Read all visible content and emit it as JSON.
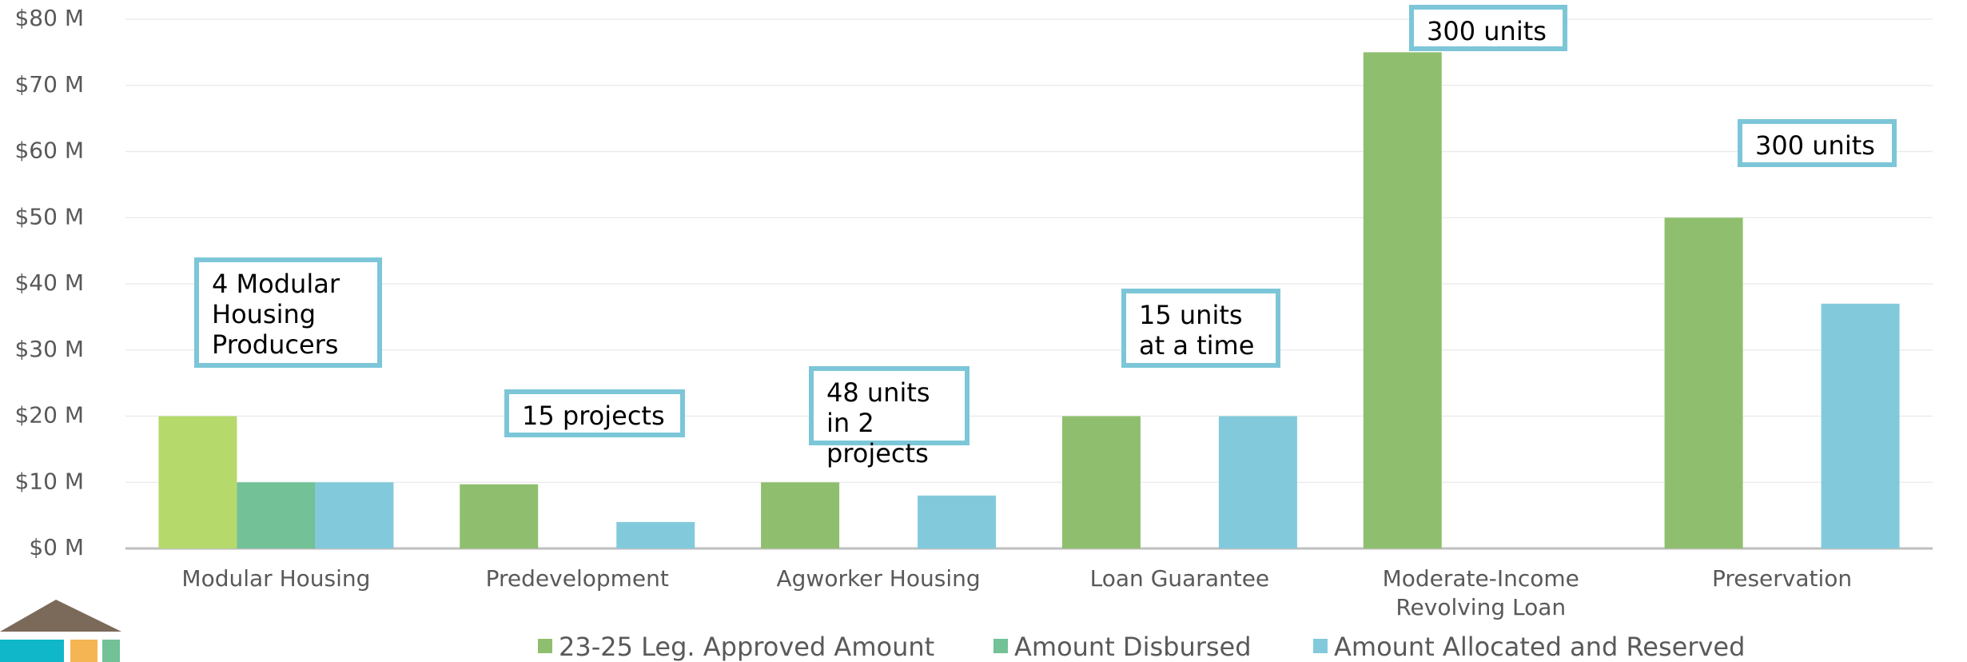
{
  "chart_data": {
    "type": "bar",
    "categories": [
      "Modular Housing",
      "Predevelopment",
      "Agworker Housing",
      "Loan Guarantee",
      "Moderate-Income Revolving Loan",
      "Preservation"
    ],
    "series": [
      {
        "name": "23-25 Leg. Approved Amount",
        "color": "#8fbf6e",
        "colors": [
          "#b5d96b",
          "#8fbf6e",
          "#8fbf6e",
          "#8fbf6e",
          "#8fbf6e",
          "#8fbf6e"
        ],
        "values": [
          20,
          9.7,
          10,
          20,
          75,
          50
        ]
      },
      {
        "name": "Amount Disbursed",
        "color": "#72c197",
        "values": [
          10,
          null,
          null,
          null,
          null,
          null
        ]
      },
      {
        "name": "Amount Allocated and Reserved",
        "color": "#82cadb",
        "values": [
          10,
          4,
          8,
          20,
          null,
          37
        ]
      }
    ],
    "ylim": [
      0,
      80
    ],
    "yticks": [
      {
        "value": 0,
        "label": "$0 M"
      },
      {
        "value": 10,
        "label": "$10 M"
      },
      {
        "value": 20,
        "label": "$20 M"
      },
      {
        "value": 30,
        "label": "$30 M"
      },
      {
        "value": 40,
        "label": "$40 M"
      },
      {
        "value": 50,
        "label": "$50 M"
      },
      {
        "value": 60,
        "label": "$60 M"
      },
      {
        "value": 70,
        "label": "$70 M"
      },
      {
        "value": 80,
        "label": "$80 M"
      }
    ],
    "grid": true,
    "legend": "bottom",
    "annotations": [
      "4 Modular Housing Producers",
      "15 projects",
      "48 units in 2 projects",
      "15 units at a time",
      "300 units",
      "300 units"
    ]
  }
}
